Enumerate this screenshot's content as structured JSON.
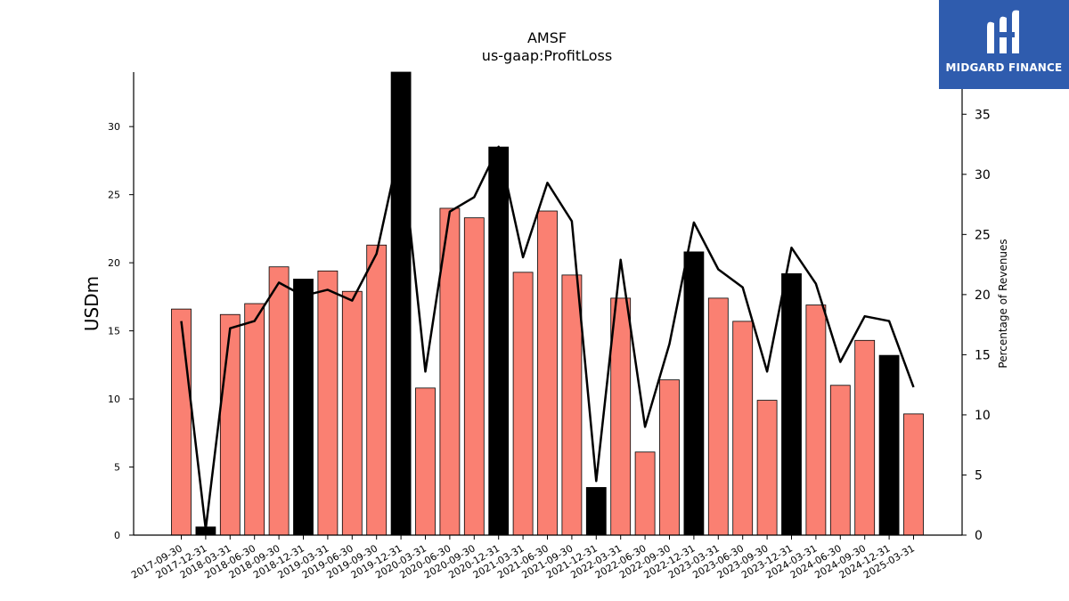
{
  "brand": {
    "name": "MIDGARD FINANCE",
    "bg_color": "#2f5cae"
  },
  "colors": {
    "bar": "#fa8072",
    "bar_highlight": "#000000",
    "line": "#000000"
  },
  "chart_data": {
    "type": "bar",
    "title": "AMSF",
    "subtitle": "us-gaap:ProfitLoss",
    "ylabel": "USDm",
    "y2label": "Percentage of Revenues",
    "ylim": [
      0,
      34
    ],
    "y2lim": [
      0,
      38.5
    ],
    "yticks": [
      0,
      5,
      10,
      15,
      20,
      25,
      30
    ],
    "y2ticks": [
      0,
      5,
      10,
      15,
      20,
      25,
      30,
      35
    ],
    "categories": [
      "2017-09-30",
      "2017-12-31",
      "2018-03-31",
      "2018-06-30",
      "2018-09-30",
      "2018-12-31",
      "2019-03-31",
      "2019-06-30",
      "2019-09-30",
      "2019-12-31",
      "2020-03-31",
      "2020-06-30",
      "2020-09-30",
      "2020-12-31",
      "2021-03-31",
      "2021-06-30",
      "2021-09-30",
      "2021-12-31",
      "2022-03-31",
      "2022-06-30",
      "2022-09-30",
      "2022-12-31",
      "2023-03-31",
      "2023-06-30",
      "2023-09-30",
      "2023-12-31",
      "2024-03-31",
      "2024-06-30",
      "2024-09-30",
      "2024-12-31",
      "2025-03-31"
    ],
    "series": [
      {
        "type": "bar",
        "values": [
          16.6,
          0.6,
          16.2,
          17.0,
          19.7,
          18.8,
          19.4,
          17.9,
          21.3,
          34.0,
          10.8,
          24.0,
          23.3,
          28.5,
          19.3,
          23.8,
          19.1,
          3.5,
          17.4,
          6.1,
          11.4,
          20.8,
          17.4,
          15.7,
          9.9,
          19.2,
          16.9,
          11.0,
          14.3,
          13.2,
          8.9
        ],
        "highlight": [
          false,
          true,
          false,
          false,
          false,
          true,
          false,
          false,
          false,
          true,
          false,
          false,
          false,
          true,
          false,
          false,
          false,
          true,
          false,
          false,
          false,
          true,
          false,
          false,
          false,
          true,
          false,
          false,
          false,
          true,
          false
        ]
      },
      {
        "type": "line",
        "axis": "right",
        "values": [
          17.8,
          0.5,
          17.2,
          17.8,
          21.0,
          19.9,
          20.4,
          19.5,
          23.4,
          32.7,
          13.6,
          26.9,
          28.1,
          32.3,
          23.1,
          29.3,
          26.1,
          4.5,
          22.9,
          9.0,
          15.9,
          26.0,
          22.1,
          20.6,
          13.6,
          23.9,
          20.9,
          14.4,
          18.2,
          17.8,
          12.3
        ]
      }
    ]
  }
}
